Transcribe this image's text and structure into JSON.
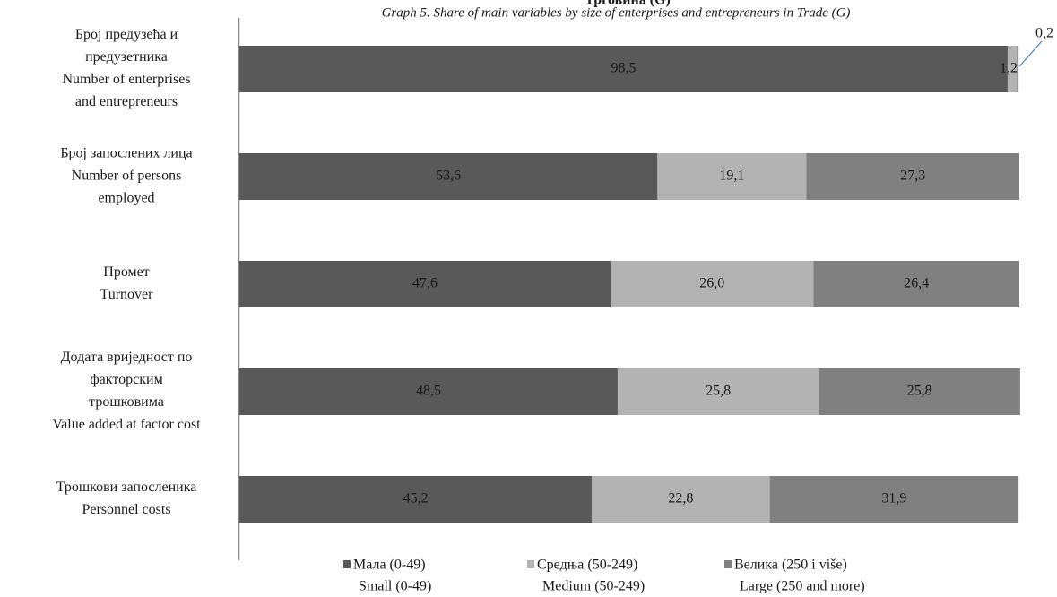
{
  "chart_data": {
    "type": "stacked-bar-horizontal",
    "title": "Трговина (G)",
    "subtitle": "Graph 5.  Share of main variables by size of enterprises and entrepreneurs  in Trade (G)",
    "categories": [
      [
        "Број предузећа и",
        "предузетника",
        "Number of enterprises",
        "and entrepreneurs"
      ],
      [
        "Број запослених лица",
        "Number of persons",
        "employed"
      ],
      [
        "Промет",
        "Turnover"
      ],
      [
        "Додата вриједност по",
        "факторским",
        "трошковима",
        "Value added at factor cost"
      ],
      [
        "Трошкови запосленика",
        "Personnel costs"
      ]
    ],
    "xlim": [
      0,
      100
    ],
    "series": [
      {
        "name": [
          "Мала (0-49)",
          "Small (0-49)"
        ],
        "color": "#595959",
        "values": [
          98.5,
          53.6,
          47.6,
          48.5,
          45.2
        ],
        "value_labels": [
          "98,5",
          "53,6",
          "47,6",
          "48,5",
          "45,2"
        ]
      },
      {
        "name": [
          "Средња  (50-249)",
          "Medium (50-249)"
        ],
        "color": "#b3b3b3",
        "values": [
          1.2,
          19.1,
          26.0,
          25.8,
          22.8
        ],
        "value_labels": [
          "1,2",
          "19,1",
          "26,0",
          "25,8",
          "22,8"
        ]
      },
      {
        "name": [
          "Велика (250 i više)",
          "Large (250 and more)"
        ],
        "color": "#808080",
        "values": [
          0.2,
          27.3,
          26.4,
          25.8,
          31.9
        ],
        "value_labels": [
          "0,2",
          "27,3",
          "26,4",
          "25,8",
          "31,9"
        ]
      }
    ]
  }
}
